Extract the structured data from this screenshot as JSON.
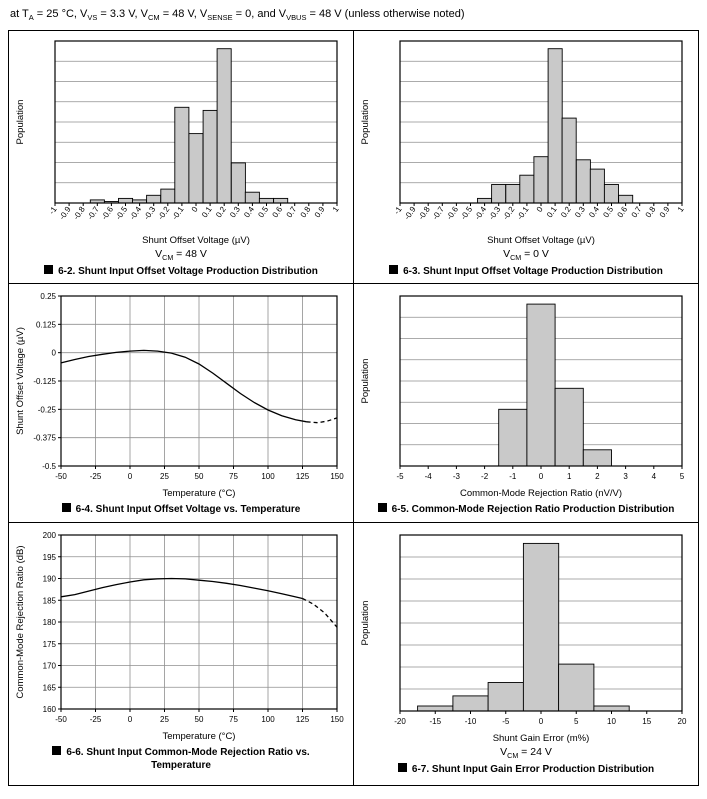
{
  "header": {
    "segments": [
      {
        "t": "at T"
      },
      {
        "s": "A"
      },
      {
        "t": " = 25 °C, V"
      },
      {
        "s": "VS"
      },
      {
        "t": " = 3.3 V, V"
      },
      {
        "s": "CM"
      },
      {
        "t": " = 48 V, V"
      },
      {
        "s": "SENSE"
      },
      {
        "t": " = 0, and V"
      },
      {
        "s": "VBUS"
      },
      {
        "t": " = 48 V (unless otherwise noted)"
      }
    ]
  },
  "chart_data": [
    {
      "id": "figure-6-2",
      "type": "bar",
      "caption": "6-2. Shunt Input Offset Voltage Production Distribution",
      "annotation": [
        {
          "t": "V"
        },
        {
          "s": "CM"
        },
        {
          "t": " = 48 V"
        }
      ],
      "xlabel": "Shunt Offset Voltage (µV)",
      "ylabel": "Population",
      "xlim": [
        -1,
        1
      ],
      "ylim": [
        0,
        105
      ],
      "ydivs": 8,
      "bin_width": 0.1,
      "rotate_ticks": true,
      "xticks": [
        "-1",
        "-0.9",
        "-0.8",
        "-0.7",
        "-0.6",
        "-0.5",
        "-0.4",
        "-0.3",
        "-0.2",
        "-0.1",
        "0",
        "0.1",
        "0.2",
        "0.3",
        "0.4",
        "0.5",
        "0.6",
        "0.7",
        "0.8",
        "0.9",
        "1"
      ],
      "bars": [
        [
          -0.7,
          2
        ],
        [
          -0.6,
          1
        ],
        [
          -0.5,
          3
        ],
        [
          -0.4,
          2
        ],
        [
          -0.3,
          5
        ],
        [
          -0.2,
          9
        ],
        [
          -0.1,
          62
        ],
        [
          0,
          45
        ],
        [
          0.1,
          60
        ],
        [
          0.2,
          100
        ],
        [
          0.3,
          26
        ],
        [
          0.4,
          7
        ],
        [
          0.5,
          3
        ],
        [
          0.6,
          3
        ]
      ]
    },
    {
      "id": "figure-6-3",
      "type": "bar",
      "caption": "6-3. Shunt Input Offset Voltage Production Distribution",
      "annotation": [
        {
          "t": "V"
        },
        {
          "s": "CM"
        },
        {
          "t": " = 0 V"
        }
      ],
      "xlabel": "Shunt Offset Voltage (µV)",
      "ylabel": "Population",
      "xlim": [
        -1,
        1
      ],
      "ylim": [
        0,
        105
      ],
      "ydivs": 8,
      "bin_width": 0.1,
      "rotate_ticks": true,
      "xticks": [
        "-1",
        "-0.9",
        "-0.8",
        "-0.7",
        "-0.6",
        "-0.5",
        "-0.4",
        "-0.3",
        "-0.2",
        "-0.1",
        "0",
        "0.1",
        "0.2",
        "0.3",
        "0.4",
        "0.5",
        "0.6",
        "0.7",
        "0.8",
        "0.9",
        "1"
      ],
      "bars": [
        [
          -0.4,
          3
        ],
        [
          -0.3,
          12
        ],
        [
          -0.2,
          12
        ],
        [
          -0.1,
          18
        ],
        [
          0,
          30
        ],
        [
          0.1,
          100
        ],
        [
          0.2,
          55
        ],
        [
          0.3,
          28
        ],
        [
          0.4,
          22
        ],
        [
          0.5,
          12
        ],
        [
          0.6,
          5
        ]
      ]
    },
    {
      "id": "figure-6-4",
      "type": "line",
      "caption": "6-4. Shunt Input Offset Voltage vs. Temperature",
      "xlabel": "Temperature (°C)",
      "ylabel": "Shunt Offset Voltage (µV)",
      "xlim": [
        -50,
        150
      ],
      "ylim": [
        -0.5,
        0.25
      ],
      "xticks": [
        "-50",
        "-25",
        "0",
        "25",
        "50",
        "75",
        "100",
        "125",
        "150"
      ],
      "yticks": [
        "0.25",
        "0.125",
        "0",
        "-0.125",
        "-0.25",
        "-0.375",
        "-0.5"
      ],
      "points": [
        [
          -50,
          -0.045
        ],
        [
          -40,
          -0.03
        ],
        [
          -30,
          -0.017
        ],
        [
          -20,
          -0.007
        ],
        [
          -10,
          0.001
        ],
        [
          0,
          0.007
        ],
        [
          10,
          0.01
        ],
        [
          20,
          0.007
        ],
        [
          30,
          -0.002
        ],
        [
          40,
          -0.02
        ],
        [
          50,
          -0.05
        ],
        [
          60,
          -0.09
        ],
        [
          70,
          -0.135
        ],
        [
          80,
          -0.18
        ],
        [
          90,
          -0.22
        ],
        [
          100,
          -0.253
        ],
        [
          110,
          -0.278
        ],
        [
          120,
          -0.296
        ],
        [
          128,
          -0.305
        ]
      ],
      "dash_points": [
        [
          128,
          -0.305
        ],
        [
          136,
          -0.309
        ],
        [
          143,
          -0.302
        ],
        [
          150,
          -0.288
        ]
      ]
    },
    {
      "id": "figure-6-5",
      "type": "bar",
      "caption": "6-5. Common-Mode Rejection Ratio Production Distribution",
      "xlabel": "Common-Mode Rejection Ratio (nV/V)",
      "ylabel": "Population",
      "xlim": [
        -5,
        5
      ],
      "ylim": [
        0,
        105
      ],
      "ydivs": 8,
      "bin_width": 1,
      "xticks": [
        "-5",
        "-4",
        "-3",
        "-2",
        "-1",
        "0",
        "1",
        "2",
        "3",
        "4",
        "5"
      ],
      "bars": [
        [
          -1,
          35
        ],
        [
          0,
          100
        ],
        [
          1,
          48
        ],
        [
          2,
          10
        ]
      ]
    },
    {
      "id": "figure-6-6",
      "type": "line",
      "caption": "6-6. Shunt Input Common-Mode Rejection Ratio vs. Temperature",
      "xlabel": "Temperature (°C)",
      "ylabel": "Common-Mode Rejection Ratio (dB)",
      "xlim": [
        -50,
        150
      ],
      "ylim": [
        160,
        200
      ],
      "xticks": [
        "-50",
        "-25",
        "0",
        "25",
        "50",
        "75",
        "100",
        "125",
        "150"
      ],
      "yticks": [
        "200",
        "195",
        "190",
        "185",
        "180",
        "175",
        "170",
        "165",
        "160"
      ],
      "points": [
        [
          -50,
          185.8
        ],
        [
          -40,
          186.3
        ],
        [
          -30,
          187.1
        ],
        [
          -20,
          187.9
        ],
        [
          -10,
          188.6
        ],
        [
          0,
          189.2
        ],
        [
          10,
          189.7
        ],
        [
          20,
          189.9
        ],
        [
          30,
          190
        ],
        [
          40,
          189.9
        ],
        [
          50,
          189.6
        ],
        [
          60,
          189.3
        ],
        [
          70,
          188.9
        ],
        [
          80,
          188.4
        ],
        [
          90,
          187.8
        ],
        [
          100,
          187.2
        ],
        [
          110,
          186.5
        ],
        [
          118,
          185.9
        ],
        [
          125,
          185.4
        ]
      ],
      "dash_points": [
        [
          125,
          185.4
        ],
        [
          133,
          184.1
        ],
        [
          141,
          182.1
        ],
        [
          150,
          178.8
        ]
      ]
    },
    {
      "id": "figure-6-7",
      "type": "bar",
      "caption": "6-7. Shunt Input Gain Error Production Distribution",
      "annotation": [
        {
          "t": "V"
        },
        {
          "s": "CM"
        },
        {
          "t": " = 24 V"
        }
      ],
      "xlabel": "Shunt Gain Error (m%)",
      "ylabel": "Population",
      "xlim": [
        -20,
        20
      ],
      "ylim": [
        0,
        105
      ],
      "ydivs": 8,
      "bin_width": 5,
      "xticks": [
        "-20",
        "-15",
        "-10",
        "-5",
        "0",
        "5",
        "10",
        "15",
        "20"
      ],
      "bars": [
        [
          -15,
          3
        ],
        [
          -10,
          9
        ],
        [
          -5,
          17
        ],
        [
          0,
          100
        ],
        [
          5,
          28
        ],
        [
          10,
          3
        ]
      ]
    }
  ]
}
